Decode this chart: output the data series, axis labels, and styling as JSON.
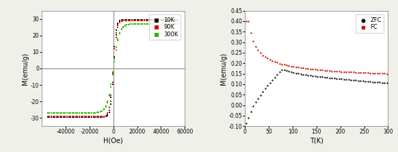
{
  "left": {
    "xlabel": "H(Oe)",
    "ylabel": "M(emu/g)",
    "xlim": [
      -60000,
      60000
    ],
    "ylim": [
      -35,
      35
    ],
    "xticks": [
      -40000,
      -20000,
      0,
      20000,
      40000,
      60000
    ],
    "yticks": [
      -30,
      -20,
      -10,
      0,
      10,
      20,
      30
    ],
    "legend_labels": [
      "10K",
      "90K",
      "300K"
    ],
    "colors": [
      "#111111",
      "#cc1100",
      "#22bb00"
    ],
    "hline_color": "#888888",
    "vline_color": "#888888"
  },
  "right": {
    "xlabel": "T(K)",
    "ylabel": "M(emu/g)",
    "xlim": [
      0,
      300
    ],
    "ylim": [
      -0.1,
      0.45
    ],
    "xticks": [
      0,
      50,
      100,
      150,
      200,
      250,
      300
    ],
    "yticks": [
      -0.1,
      -0.05,
      0.0,
      0.05,
      0.1,
      0.15,
      0.2,
      0.25,
      0.3,
      0.35,
      0.4,
      0.45
    ],
    "legend_labels": [
      "ZFC",
      "FC"
    ],
    "colors": [
      "#111111",
      "#cc1100"
    ]
  },
  "background": "#ffffff",
  "fig_bg": "#f0f0eb"
}
